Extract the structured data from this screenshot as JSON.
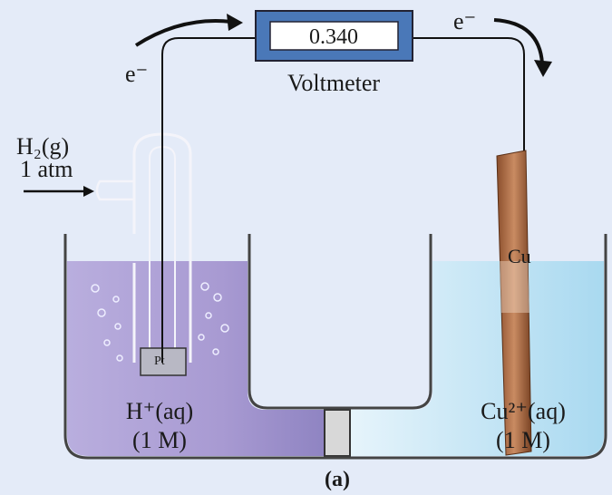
{
  "voltmeter": {
    "reading": "0.340",
    "label": "Voltmeter"
  },
  "electron_labels": [
    "e⁻",
    "e⁻"
  ],
  "left_cell": {
    "gas": "H₂(g)",
    "pressure": "1 atm",
    "electrode": "Pt",
    "solution": "H⁺(aq)",
    "concentration": "(1 M)"
  },
  "right_cell": {
    "electrode": "Cu",
    "solution": "Cu²⁺(aq)",
    "concentration": "(1 M)"
  },
  "caption": "(a)"
}
